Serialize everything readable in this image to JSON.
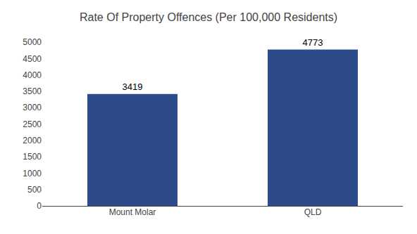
{
  "chart_data": {
    "type": "bar",
    "title": "Rate Of Property Offences (Per 100,000 Residents)",
    "categories": [
      "Mount Molar",
      "QLD"
    ],
    "values": [
      3419,
      4773
    ],
    "color": "#2d4a8a",
    "ylim": [
      0,
      5000
    ],
    "yticks": [
      0,
      500,
      1000,
      1500,
      2000,
      2500,
      3000,
      3500,
      4000,
      4500,
      5000
    ],
    "grid": false,
    "data_labels": true
  }
}
